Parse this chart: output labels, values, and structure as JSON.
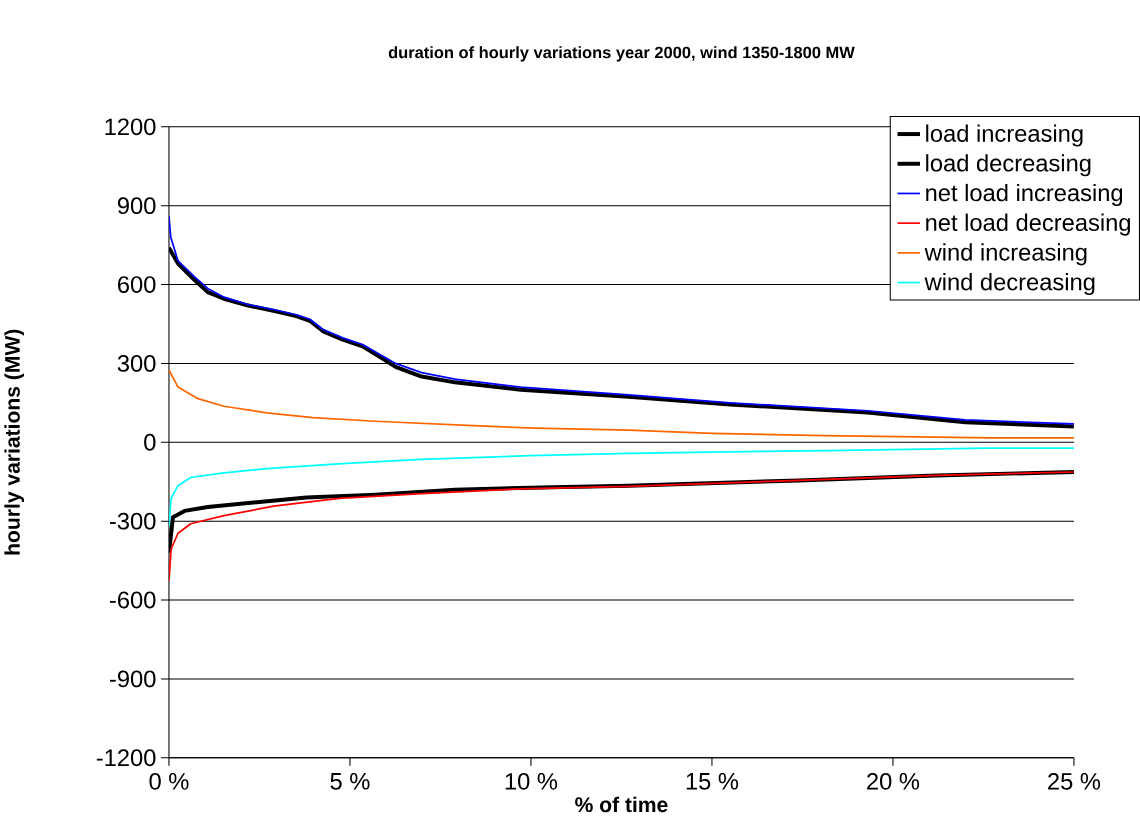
{
  "chart_data": {
    "type": "line",
    "title": "duration of hourly variations year 2000, wind 1350-1800 MW",
    "xlabel": "% of time",
    "ylabel": "hourly variations (MW)",
    "xlim": [
      0,
      25
    ],
    "ylim": [
      -1200,
      1200
    ],
    "xticks": [
      {
        "value": 0,
        "label": "0 %"
      },
      {
        "value": 5,
        "label": "5 %"
      },
      {
        "value": 10,
        "label": "10 %"
      },
      {
        "value": 15,
        "label": "15 %"
      },
      {
        "value": 20,
        "label": "20 %"
      },
      {
        "value": 25,
        "label": "25 %"
      }
    ],
    "yticks": [
      -1200,
      -900,
      -600,
      -300,
      0,
      300,
      600,
      900,
      1200
    ],
    "grid": "y",
    "legend": "top right",
    "marker": "none",
    "line_style": "solid",
    "series": [
      {
        "name": "load increasing",
        "color": "#000000",
        "x": [
          0,
          0.25,
          0.7,
          1.07,
          1.52,
          2.16,
          2.89,
          3.52,
          3.89,
          4.25,
          4.8,
          5.35,
          5.9,
          6.26,
          6.98,
          7.9,
          9.72,
          12.7,
          15.5,
          19.3,
          22,
          25
        ],
        "values": [
          740,
          680,
          618,
          571,
          546,
          521,
          500,
          480,
          462,
          423,
          390,
          365,
          318,
          287,
          250,
          228,
          200,
          173,
          144,
          113,
          76,
          60
        ]
      },
      {
        "name": "load decreasing",
        "color": "#000000",
        "x": [
          0,
          0.11,
          0.43,
          1.07,
          2.43,
          3.8,
          5.7,
          7.9,
          10.6,
          12.7,
          17.4,
          21.2,
          25
        ],
        "values": [
          -420,
          -285,
          -261,
          -246,
          -228,
          -210,
          -199,
          -180,
          -171,
          -165,
          -145,
          -126,
          -113
        ]
      },
      {
        "name": "net load increasing",
        "color": "#0000ff",
        "x": [
          0,
          0.05,
          0.25,
          0.7,
          1.07,
          1.52,
          2.16,
          2.89,
          3.52,
          3.89,
          4.25,
          4.8,
          5.35,
          5.9,
          6.26,
          6.98,
          7.9,
          9.72,
          12.7,
          15.5,
          19.3,
          22,
          25
        ],
        "values": [
          860,
          780,
          690,
          630,
          585,
          552,
          525,
          505,
          485,
          468,
          430,
          397,
          372,
          328,
          300,
          265,
          240,
          210,
          180,
          150,
          120,
          85,
          70
        ]
      },
      {
        "name": "net load decreasing",
        "color": "#ff0000",
        "x": [
          0,
          0.06,
          0.25,
          0.6,
          1.52,
          2.89,
          4.7,
          6.98,
          9.7,
          12.7,
          17.4,
          21.2,
          25
        ],
        "values": [
          -527,
          -406,
          -346,
          -310,
          -279,
          -243,
          -213,
          -195,
          -177,
          -168,
          -145,
          -126,
          -113
        ]
      },
      {
        "name": "wind increasing",
        "color": "#ff6600",
        "x": [
          0,
          0.25,
          0.8,
          1.52,
          2.7,
          3.98,
          5.7,
          8.25,
          10.1,
          12.7,
          15.0,
          18.1,
          22.7,
          25
        ],
        "values": [
          275,
          210,
          166,
          137,
          112,
          94,
          80,
          64,
          54,
          46,
          34,
          25,
          17,
          17
        ]
      },
      {
        "name": "wind decreasing",
        "color": "#00ffff",
        "x": [
          0,
          0.06,
          0.25,
          0.6,
          1.52,
          2.89,
          4.9,
          6.98,
          9.98,
          12.7,
          14.45,
          18.2,
          22.6,
          25
        ],
        "values": [
          -320,
          -213,
          -165,
          -134,
          -116,
          -98,
          -80,
          -65,
          -51,
          -42,
          -38,
          -32,
          -22,
          -22
        ]
      }
    ]
  }
}
